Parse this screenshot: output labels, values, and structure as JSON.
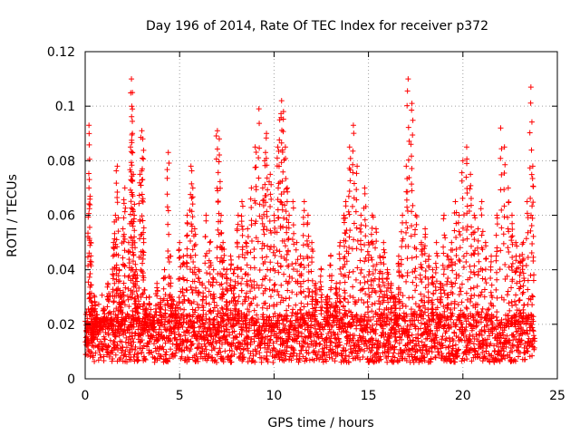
{
  "chart_data": {
    "type": "scatter",
    "title": "Day 196 of 2014, Rate Of TEC Index for receiver p372",
    "xlabel": "GPS time / hours",
    "ylabel": "ROTI / TECUs",
    "xlim": [
      0,
      25
    ],
    "ylim": [
      0,
      0.12
    ],
    "xticks": [
      0,
      5,
      10,
      15,
      20,
      25
    ],
    "xtick_labels": [
      "0",
      "5",
      "10",
      "15",
      "20",
      "25"
    ],
    "yticks": [
      0,
      0.02,
      0.04,
      0.06,
      0.08,
      0.1,
      0.12
    ],
    "ytick_labels": [
      "0",
      "0.02",
      "0.04",
      "0.06",
      "0.08",
      "0.1",
      "0.12"
    ],
    "grid": true,
    "marker": "+",
    "color": "#ff0000",
    "series": [
      {
        "name": "ROTI",
        "x": [
          0.1,
          0.2,
          0.2,
          0.3,
          0.35,
          0.4,
          0.5,
          0.6,
          0.8,
          1.0,
          1.2,
          1.4,
          1.5,
          1.6,
          1.7,
          1.8,
          1.9,
          2.0,
          2.1,
          2.3,
          2.4,
          2.45,
          2.5,
          2.5,
          2.55,
          2.6,
          2.7,
          2.8,
          2.9,
          3.0,
          3.05,
          3.1,
          3.2,
          3.4,
          3.6,
          3.8,
          4.0,
          4.2,
          4.4,
          4.5,
          4.6,
          4.8,
          5.0,
          5.2,
          5.4,
          5.6,
          5.7,
          5.8,
          6.0,
          6.2,
          6.4,
          6.6,
          6.8,
          7.0,
          7.1,
          7.2,
          7.3,
          7.5,
          7.7,
          7.9,
          8.1,
          8.3,
          8.5,
          8.6,
          8.8,
          9.0,
          9.2,
          9.4,
          9.5,
          9.6,
          9.8,
          10.0,
          10.2,
          10.3,
          10.4,
          10.5,
          10.6,
          10.7,
          10.8,
          11.0,
          11.2,
          11.4,
          11.6,
          11.8,
          12.0,
          12.2,
          12.5,
          12.8,
          13.0,
          13.3,
          13.5,
          13.7,
          13.8,
          14.0,
          14.2,
          14.4,
          14.6,
          14.8,
          15.0,
          15.2,
          15.4,
          15.6,
          15.8,
          16.0,
          16.2,
          16.4,
          16.6,
          16.8,
          17.0,
          17.1,
          17.3,
          17.5,
          17.8,
          18.0,
          18.2,
          18.4,
          18.6,
          18.8,
          19.0,
          19.2,
          19.4,
          19.6,
          19.8,
          20.0,
          20.2,
          20.4,
          20.6,
          20.8,
          21.0,
          21.2,
          21.5,
          21.8,
          22.0,
          22.2,
          22.4,
          22.6,
          22.8,
          23.0,
          23.2,
          23.4,
          23.6,
          23.7
        ],
        "y": [
          0.012,
          0.093,
          0.07,
          0.05,
          0.028,
          0.015,
          0.03,
          0.022,
          0.018,
          0.025,
          0.035,
          0.02,
          0.05,
          0.06,
          0.078,
          0.04,
          0.03,
          0.055,
          0.07,
          0.05,
          0.085,
          0.11,
          0.105,
          0.09,
          0.075,
          0.06,
          0.04,
          0.03,
          0.075,
          0.091,
          0.088,
          0.05,
          0.025,
          0.03,
          0.02,
          0.035,
          0.028,
          0.04,
          0.083,
          0.045,
          0.03,
          0.025,
          0.05,
          0.045,
          0.06,
          0.078,
          0.07,
          0.055,
          0.04,
          0.035,
          0.06,
          0.05,
          0.04,
          0.091,
          0.088,
          0.06,
          0.05,
          0.04,
          0.045,
          0.04,
          0.06,
          0.065,
          0.05,
          0.055,
          0.07,
          0.085,
          0.099,
          0.07,
          0.08,
          0.09,
          0.075,
          0.06,
          0.085,
          0.095,
          0.102,
          0.098,
          0.085,
          0.07,
          0.06,
          0.065,
          0.05,
          0.045,
          0.065,
          0.06,
          0.05,
          0.035,
          0.04,
          0.03,
          0.045,
          0.035,
          0.05,
          0.06,
          0.065,
          0.085,
          0.093,
          0.078,
          0.06,
          0.07,
          0.05,
          0.06,
          0.055,
          0.045,
          0.05,
          0.04,
          0.035,
          0.03,
          0.045,
          0.06,
          0.078,
          0.11,
          0.101,
          0.06,
          0.05,
          0.055,
          0.045,
          0.04,
          0.05,
          0.035,
          0.06,
          0.045,
          0.05,
          0.065,
          0.06,
          0.08,
          0.085,
          0.075,
          0.06,
          0.055,
          0.065,
          0.05,
          0.045,
          0.06,
          0.092,
          0.085,
          0.07,
          0.06,
          0.05,
          0.045,
          0.05,
          0.065,
          0.107,
          0.078
        ],
        "note": "Dense band of points between ~0.005 and ~0.03 TECU spans the full 0–23.8 h range; listed points are representative peaks and mid-level values."
      }
    ]
  }
}
